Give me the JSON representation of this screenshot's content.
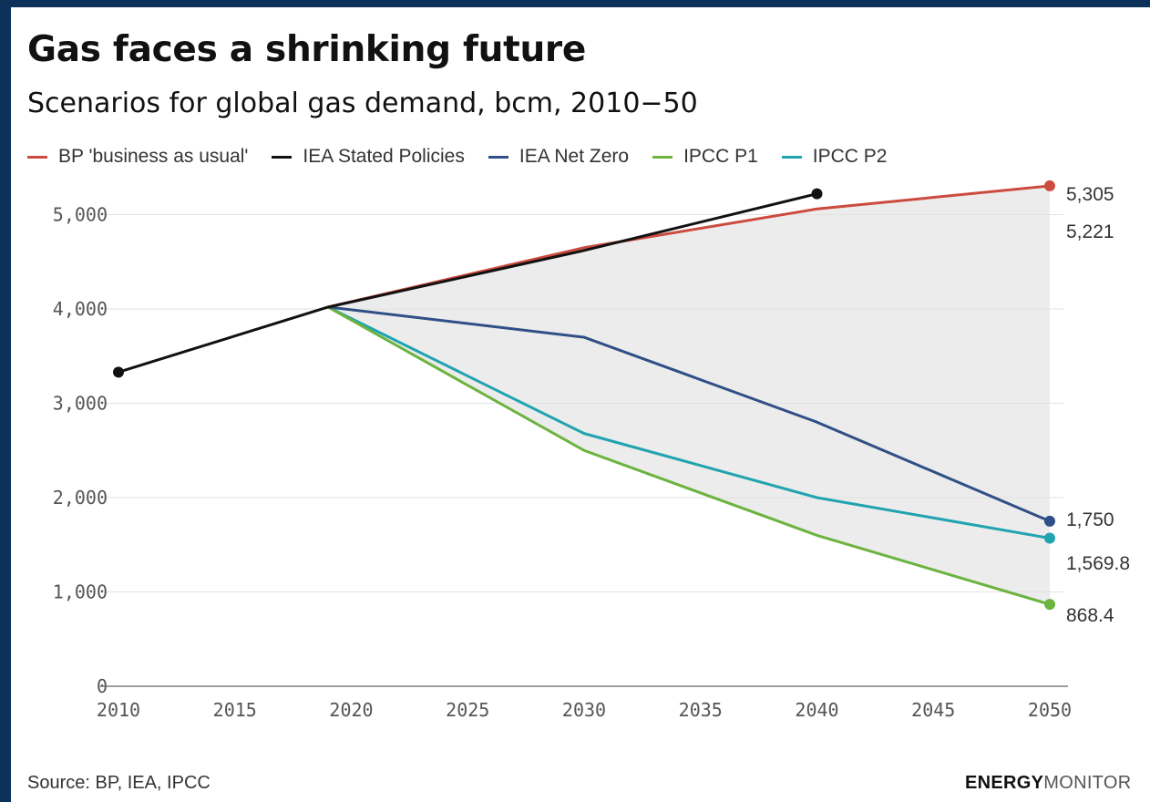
{
  "chart_data": {
    "type": "line",
    "title": "Gas faces a shrinking future",
    "subtitle": "Scenarios for global gas demand, bcm, 2010−50",
    "xlabel": "",
    "ylabel": "",
    "xlim": [
      2010,
      2050
    ],
    "ylim": [
      0,
      5300
    ],
    "x_ticks": [
      "2010",
      "2015",
      "2020",
      "2025",
      "2030",
      "2035",
      "2040",
      "2045",
      "2050"
    ],
    "y_ticks": [
      "0",
      "1,000",
      "2,000",
      "3,000",
      "4,000",
      "5,000"
    ],
    "grid": true,
    "legend_position": "top",
    "series": [
      {
        "name": "BP 'business as usual'",
        "color": "#cc4a3f",
        "points": [
          [
            2019,
            4020
          ],
          [
            2030,
            4650
          ],
          [
            2040,
            5060
          ],
          [
            2050,
            5305
          ]
        ],
        "end_label": "5,305"
      },
      {
        "name": "IEA Stated Policies",
        "color": "#111111",
        "points": [
          [
            2010,
            3330
          ],
          [
            2019,
            4020
          ],
          [
            2030,
            4620
          ],
          [
            2040,
            5221
          ]
        ],
        "end_label": "5,221"
      },
      {
        "name": "IEA Net Zero",
        "color": "#2f4f86",
        "points": [
          [
            2019,
            4020
          ],
          [
            2030,
            3700
          ],
          [
            2040,
            2800
          ],
          [
            2050,
            1750
          ]
        ],
        "end_label": "1,750"
      },
      {
        "name": "IPCC P1",
        "color": "#6cb33f",
        "points": [
          [
            2019,
            4020
          ],
          [
            2030,
            2500
          ],
          [
            2040,
            1600
          ],
          [
            2050,
            868.4
          ]
        ],
        "end_label": "868.4"
      },
      {
        "name": "IPCC P2",
        "color": "#21a3b0",
        "points": [
          [
            2019,
            4020
          ],
          [
            2030,
            2680
          ],
          [
            2040,
            2000
          ],
          [
            2050,
            1569.8
          ]
        ],
        "end_label": "1,569.8"
      }
    ],
    "shaded_range": "between highest and lowest scenario, 2019–2050",
    "source": "Source: BP, IEA, IPCC"
  },
  "brand": {
    "part1": "ENERGY",
    "part2": "MONITOR"
  },
  "colors": {
    "frame": "#0d3259",
    "shade": "#ececec",
    "grid": "#e2e2e2"
  }
}
